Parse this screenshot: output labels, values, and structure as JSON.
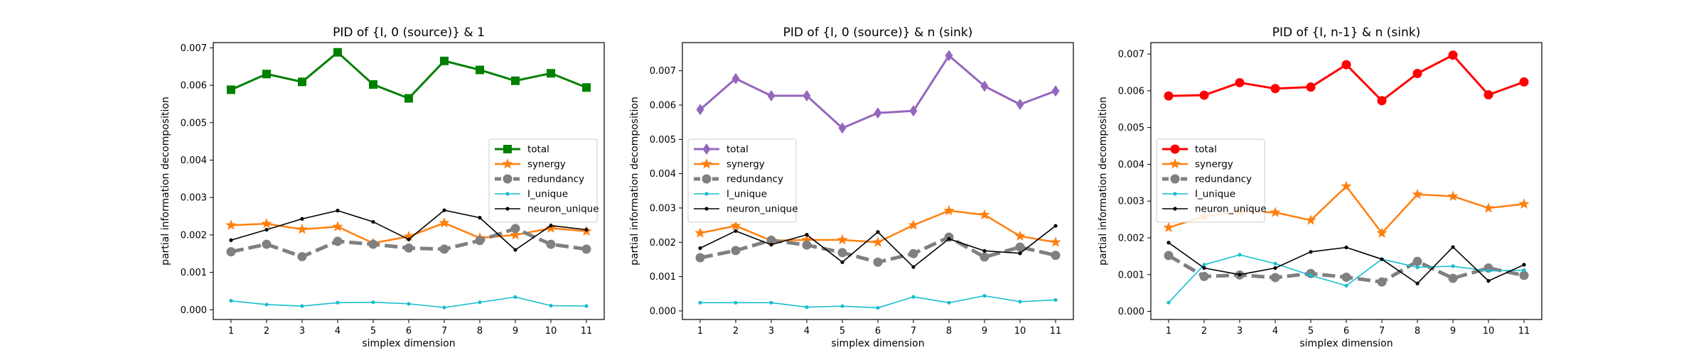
{
  "chart_data": [
    {
      "type": "line",
      "title": "PID of {I, 0 (source)} & 1",
      "xlabel": "simplex dimension",
      "ylabel": "partial information decomposition",
      "x": [
        1,
        2,
        3,
        4,
        5,
        6,
        7,
        8,
        9,
        10,
        11
      ],
      "xticks": [
        "1",
        "2",
        "3",
        "4",
        "5",
        "6",
        "7",
        "8",
        "9",
        "10",
        "11"
      ],
      "ylim": [
        -0.00026,
        0.00714
      ],
      "yticks": [
        "0.000",
        "0.001",
        "0.002",
        "0.003",
        "0.004",
        "0.005",
        "0.006",
        "0.007"
      ],
      "legend_loc": "center-right",
      "series": [
        {
          "name": "total",
          "color": "#008000",
          "marker": "s",
          "dash": "solid",
          "values": [
            0.00588,
            0.0063,
            0.00609,
            0.00688,
            0.00602,
            0.00565,
            0.00665,
            0.00641,
            0.00612,
            0.00632,
            0.00594
          ]
        },
        {
          "name": "synergy",
          "color": "#ff7f0e",
          "marker": "*",
          "dash": "solid",
          "values": [
            0.00226,
            0.0023,
            0.00215,
            0.00222,
            0.00178,
            0.00196,
            0.00232,
            0.00192,
            0.002,
            0.00218,
            0.0021
          ]
        },
        {
          "name": "redundancy",
          "color": "#808080",
          "marker": "o",
          "dash": "dashed",
          "values": [
            0.00155,
            0.00175,
            0.00142,
            0.00183,
            0.00175,
            0.00165,
            0.00162,
            0.00185,
            0.00217,
            0.00175,
            0.00162
          ]
        },
        {
          "name": "I_unique",
          "color": "#17becf",
          "marker": ".",
          "dash": "solid",
          "values": [
            0.00024,
            0.00014,
            0.0001,
            0.00019,
            0.0002,
            0.00016,
            6e-05,
            0.0002,
            0.00034,
            0.00011,
            0.0001
          ]
        },
        {
          "name": "neuron_unique",
          "color": "#000000",
          "marker": ".",
          "dash": "solid",
          "values": [
            0.00186,
            0.00214,
            0.00243,
            0.00265,
            0.00235,
            0.00188,
            0.00266,
            0.00246,
            0.0016,
            0.00225,
            0.00214
          ]
        }
      ]
    },
    {
      "type": "line",
      "title": "PID of {I, 0 (source)} & n (sink)",
      "xlabel": "simplex dimension",
      "ylabel": "partial information decomposition",
      "x": [
        1,
        2,
        3,
        4,
        5,
        6,
        7,
        8,
        9,
        10,
        11
      ],
      "xticks": [
        "1",
        "2",
        "3",
        "4",
        "5",
        "6",
        "7",
        "8",
        "9",
        "10",
        "11"
      ],
      "ylim": [
        -0.00025,
        0.00782
      ],
      "yticks": [
        "0.000",
        "0.001",
        "0.002",
        "0.003",
        "0.004",
        "0.005",
        "0.006",
        "0.007"
      ],
      "legend_loc": "lower-left",
      "series": [
        {
          "name": "total",
          "color": "#9467bd",
          "marker": "d",
          "dash": "solid",
          "values": [
            0.00587,
            0.00677,
            0.00627,
            0.00627,
            0.00533,
            0.00577,
            0.00583,
            0.00744,
            0.00655,
            0.00602,
            0.00641
          ]
        },
        {
          "name": "synergy",
          "color": "#ff7f0e",
          "marker": "*",
          "dash": "solid",
          "values": [
            0.00227,
            0.00248,
            0.00205,
            0.00207,
            0.00207,
            0.002,
            0.0025,
            0.00292,
            0.0028,
            0.00218,
            0.002
          ]
        },
        {
          "name": "redundancy",
          "color": "#808080",
          "marker": "o",
          "dash": "dashed",
          "values": [
            0.00155,
            0.00176,
            0.00206,
            0.00192,
            0.0017,
            0.00142,
            0.00167,
            0.00215,
            0.00157,
            0.00186,
            0.00162
          ]
        },
        {
          "name": "I_unique",
          "color": "#17becf",
          "marker": ".",
          "dash": "solid",
          "values": [
            0.00024,
            0.00024,
            0.00024,
            0.00011,
            0.00014,
            9e-05,
            0.00041,
            0.00024,
            0.00044,
            0.00027,
            0.00032
          ]
        },
        {
          "name": "neuron_unique",
          "color": "#000000",
          "marker": ".",
          "dash": "solid",
          "values": [
            0.00183,
            0.00233,
            0.00193,
            0.00222,
            0.00142,
            0.0023,
            0.00128,
            0.0021,
            0.00175,
            0.00168,
            0.00248
          ]
        }
      ]
    },
    {
      "type": "line",
      "title": "PID of {I, n-1} & n (sink)",
      "xlabel": "simplex dimension",
      "ylabel": "partial information decomposition",
      "x": [
        1,
        2,
        3,
        4,
        5,
        6,
        7,
        8,
        9,
        10,
        11
      ],
      "xticks": [
        "1",
        "2",
        "3",
        "4",
        "5",
        "6",
        "7",
        "8",
        "9",
        "10",
        "11"
      ],
      "ylim": [
        -0.00022,
        0.00731
      ],
      "yticks": [
        "0.000",
        "0.001",
        "0.002",
        "0.003",
        "0.004",
        "0.005",
        "0.006",
        "0.007"
      ],
      "legend_loc": "center-left",
      "series": [
        {
          "name": "total",
          "color": "#ff0000",
          "marker": "o",
          "dash": "solid",
          "values": [
            0.00586,
            0.00588,
            0.00622,
            0.00606,
            0.0061,
            0.00671,
            0.00573,
            0.00647,
            0.00697,
            0.00589,
            0.00624
          ]
        },
        {
          "name": "synergy",
          "color": "#ff7f0e",
          "marker": "*",
          "dash": "solid",
          "values": [
            0.00228,
            0.00258,
            0.00272,
            0.00269,
            0.00248,
            0.0034,
            0.00213,
            0.00318,
            0.00313,
            0.00281,
            0.00292
          ]
        },
        {
          "name": "redundancy",
          "color": "#808080",
          "marker": "o",
          "dash": "dashed",
          "values": [
            0.00152,
            0.00095,
            0.00099,
            0.00092,
            0.00103,
            0.00093,
            0.0008,
            0.00136,
            0.0009,
            0.00118,
            0.00098
          ]
        },
        {
          "name": "I_unique",
          "color": "#17becf",
          "marker": ".",
          "dash": "solid",
          "values": [
            0.00024,
            0.00127,
            0.00154,
            0.0013,
            0.00098,
            0.0007,
            0.00142,
            0.0012,
            0.00123,
            0.0011,
            0.00112
          ]
        },
        {
          "name": "neuron_unique",
          "color": "#000000",
          "marker": ".",
          "dash": "solid",
          "values": [
            0.00187,
            0.00118,
            0.001,
            0.00118,
            0.00162,
            0.00174,
            0.00142,
            0.00076,
            0.00175,
            0.00083,
            0.00127
          ]
        }
      ]
    }
  ]
}
